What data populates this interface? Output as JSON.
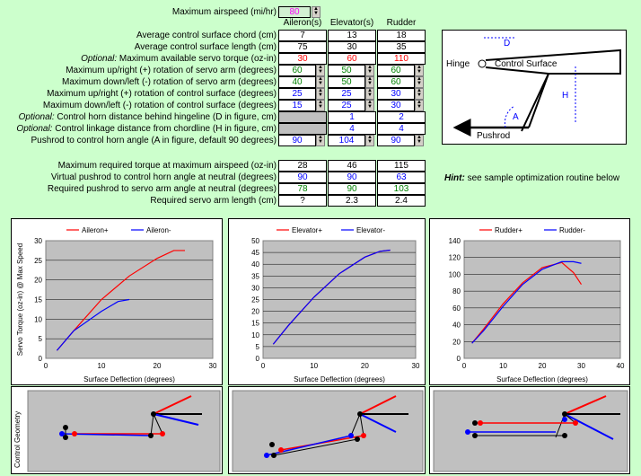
{
  "top": {
    "airspeed_label": "Maximum airspeed (mi/hr)",
    "airspeed_value": "80"
  },
  "columns": [
    "Aileron(s)",
    "Elevator(s)",
    "Rudder"
  ],
  "rows": [
    {
      "label": "Average control surface chord (cm)",
      "values": [
        "7",
        "13",
        "18"
      ],
      "colors": [
        "#000",
        "#000",
        "#000"
      ]
    },
    {
      "label": "Average control surface length (cm)",
      "values": [
        "75",
        "30",
        "35"
      ],
      "colors": [
        "#000",
        "#000",
        "#000"
      ]
    },
    {
      "opt": "Optional:",
      "label": "  Maximum available servo torque (oz-in)",
      "values": [
        "30",
        "60",
        "110"
      ],
      "colors": [
        "#ff0000",
        "#ff0000",
        "#ff0000"
      ]
    },
    {
      "label": "Maximum up/right (+) rotation of servo arm (degrees)",
      "values": [
        "60",
        "50",
        "60"
      ],
      "colors": [
        "#008000",
        "#008000",
        "#008000"
      ]
    },
    {
      "label": "Maximum down/left (-) rotation of servo arm (degrees)",
      "values": [
        "40",
        "50",
        "60"
      ],
      "colors": [
        "#008000",
        "#008000",
        "#008000"
      ]
    },
    {
      "label": "Maximum up/right (+) rotation of control surface (degrees)",
      "values": [
        "25",
        "25",
        "30"
      ],
      "colors": [
        "#0000ff",
        "#0000ff",
        "#0000ff"
      ]
    },
    {
      "label": "Maximum down/left (-) rotation of control surface (degrees)",
      "values": [
        "15",
        "25",
        "30"
      ],
      "colors": [
        "#0000ff",
        "#0000ff",
        "#0000ff"
      ]
    },
    {
      "opt": "Optional:",
      "label": "  Control horn distance behind hingeline (D in figure, cm)",
      "values": [
        "",
        "1",
        "2"
      ],
      "colors": [
        "#0000ff",
        "#0000ff",
        "#0000ff"
      ]
    },
    {
      "opt": "Optional:",
      "label": "  Control linkage distance from chordline (H in figure, cm)",
      "values": [
        "",
        "4",
        "4"
      ],
      "colors": [
        "#0000ff",
        "#0000ff",
        "#0000ff"
      ]
    },
    {
      "label": "Pushrod to control horn angle (A in figure, default 90 degrees)",
      "values": [
        "90",
        "104",
        "90"
      ],
      "colors": [
        "#0000ff",
        "#0000ff",
        "#0000ff"
      ]
    }
  ],
  "results": [
    {
      "label": "Maximum required torque at maximum airspeed (oz-in)",
      "values": [
        "28",
        "46",
        "115"
      ],
      "colors": [
        "#000",
        "#000",
        "#000"
      ]
    },
    {
      "label": "Virtual pushrod to control horn angle at neutral (degrees)",
      "values": [
        "90",
        "90",
        "63"
      ],
      "colors": [
        "#0000ff",
        "#0000ff",
        "#0000ff"
      ]
    },
    {
      "label": "Required pushrod to servo arm angle at neutral (degrees)",
      "values": [
        "78",
        "90",
        "103"
      ],
      "colors": [
        "#008000",
        "#008000",
        "#008000"
      ]
    },
    {
      "label": "Required servo arm length (cm)",
      "values": [
        "?",
        "2.3",
        "2.4"
      ],
      "colors": [
        "#000",
        "#000",
        "#000"
      ]
    }
  ],
  "hint": {
    "title": "Hint:",
    "text": "see sample optimization routine below"
  },
  "figure": {
    "hinge": "Hinge",
    "surface": "Control Surface",
    "pushrod": "Pushrod",
    "d": "D",
    "h": "H",
    "a": "A"
  },
  "chart_data": [
    {
      "type": "line",
      "series": [
        {
          "name": "Aileron+",
          "color": "#ff0000",
          "x": [
            2,
            5,
            10,
            15,
            20,
            23,
            25
          ],
          "y": [
            2,
            7,
            15,
            21,
            25.5,
            27.5,
            27.5
          ]
        },
        {
          "name": "Aileron-",
          "color": "#0000ff",
          "x": [
            2,
            5,
            10,
            13,
            15
          ],
          "y": [
            2,
            7,
            12,
            14.5,
            15
          ]
        }
      ],
      "xlim": [
        0,
        30
      ],
      "ylim": [
        0,
        30
      ],
      "xticks": [
        0,
        10,
        20,
        30
      ],
      "yticks": [
        0,
        5,
        10,
        15,
        20,
        25,
        30
      ],
      "xlabel": "Surface Deflection  (degrees)",
      "ylabel": "Servo Torque  (oz-in) @ Max Speed"
    },
    {
      "type": "line",
      "series": [
        {
          "name": "Elevator+",
          "color": "#ff0000",
          "x": [
            2,
            5,
            10,
            15,
            20,
            23,
            25
          ],
          "y": [
            6,
            14,
            26,
            36,
            43,
            45.5,
            46
          ]
        },
        {
          "name": "Elevator-",
          "color": "#0000ff",
          "x": [
            2,
            5,
            10,
            15,
            20,
            23,
            25
          ],
          "y": [
            6,
            14,
            26,
            36,
            43,
            45.5,
            46
          ]
        }
      ],
      "xlim": [
        0,
        30
      ],
      "ylim": [
        0,
        50
      ],
      "xticks": [
        0,
        10,
        20,
        30
      ],
      "yticks": [
        0,
        5,
        10,
        15,
        20,
        25,
        30,
        35,
        40,
        45,
        50
      ],
      "xlabel": "Surface Deflection  (degrees)",
      "ylabel": ""
    },
    {
      "type": "line",
      "series": [
        {
          "name": "Rudder+",
          "color": "#ff0000",
          "x": [
            2,
            5,
            10,
            15,
            20,
            25,
            28,
            30
          ],
          "y": [
            18,
            35,
            65,
            90,
            108,
            114,
            102,
            88
          ]
        },
        {
          "name": "Rudder-",
          "color": "#0000ff",
          "x": [
            2,
            5,
            10,
            15,
            20,
            25,
            28,
            30
          ],
          "y": [
            18,
            33,
            62,
            88,
            106,
            115,
            115,
            113
          ]
        }
      ],
      "xlim": [
        0,
        40
      ],
      "ylim": [
        0,
        140
      ],
      "xticks": [
        0,
        10,
        20,
        30,
        40
      ],
      "yticks": [
        0,
        20,
        40,
        60,
        80,
        100,
        120,
        140
      ],
      "xlabel": "Surface Deflection  (degrees)",
      "ylabel": ""
    }
  ],
  "geometry_label": "Control Geometry",
  "colors": {
    "background": "#ccffcc",
    "highlight": "#ff00ff",
    "panel": "#c0c0c0"
  }
}
